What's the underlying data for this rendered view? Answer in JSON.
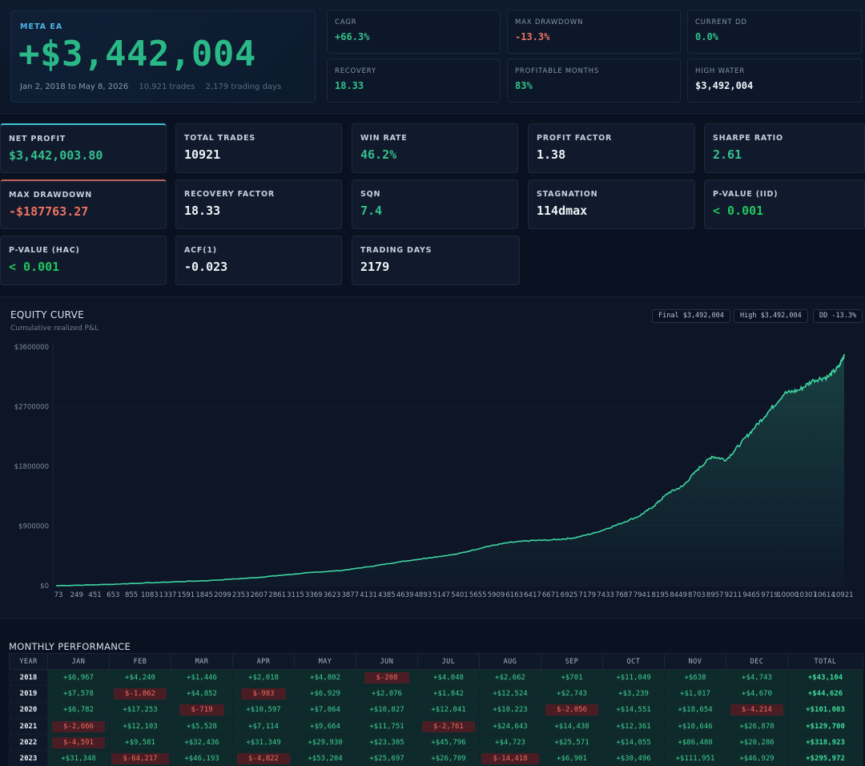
{
  "hero": {
    "tag": "META EA",
    "value": "+$3,442,004",
    "date_range": "Jan 2, 2018 to May 8, 2026",
    "trades": "10,921 trades",
    "days": "2,179 trading days"
  },
  "top_tiles": [
    {
      "label": "CAGR",
      "value": "+66.3%",
      "tone": "green"
    },
    {
      "label": "MAX DRAWDOWN",
      "value": "-13.3%",
      "tone": "red"
    },
    {
      "label": "CURRENT DD",
      "value": "0.0%",
      "tone": "green"
    },
    {
      "label": "RECOVERY",
      "value": "18.33",
      "tone": "green"
    },
    {
      "label": "PROFITABLE MONTHS",
      "value": "83%",
      "tone": "green"
    },
    {
      "label": "HIGH WATER",
      "value": "$3,492,004",
      "tone": "white"
    }
  ],
  "stats": [
    {
      "label": "NET PROFIT",
      "value": "$3,442,003.80",
      "tone": "green"
    },
    {
      "label": "TOTAL TRADES",
      "value": "10921",
      "tone": "white"
    },
    {
      "label": "WIN RATE",
      "value": "46.2%",
      "tone": "green"
    },
    {
      "label": "PROFIT FACTOR",
      "value": "1.38",
      "tone": "white"
    },
    {
      "label": "SHARPE RATIO",
      "value": "2.61",
      "tone": "green"
    },
    {
      "label": "MAX DRAWDOWN",
      "value": "-$187763.27",
      "tone": "red"
    },
    {
      "label": "RECOVERY FACTOR",
      "value": "18.33",
      "tone": "white"
    },
    {
      "label": "SQN",
      "value": "7.4",
      "tone": "green"
    },
    {
      "label": "STAGNATION",
      "value": "114dmax",
      "tone": "white"
    },
    {
      "label": "P-VALUE (IID)",
      "value": "< 0.001",
      "tone": "bright-green"
    },
    {
      "label": "P-VALUE (HAC)",
      "value": "< 0.001",
      "tone": "bright-green"
    },
    {
      "label": "ACF(1)",
      "value": "-0.023",
      "tone": "white"
    },
    {
      "label": "TRADING DAYS",
      "value": "2179",
      "tone": "white"
    }
  ],
  "equity": {
    "title": "EQUITY CURVE",
    "subtitle": "Cumulative realized P&L",
    "pills": [
      "Final $3,492,004",
      "High $3,492,004",
      "DD -13.3%"
    ],
    "line_color": "#3fd6a0"
  },
  "chart_data": {
    "type": "line",
    "title": "EQUITY CURVE",
    "subtitle": "Cumulative realized P&L",
    "xlabel": "",
    "ylabel": "",
    "ylim": [
      0,
      3600000
    ],
    "xlim": [
      73,
      10921
    ],
    "y_ticks": [
      "$0",
      "$900000",
      "$1800000",
      "$2700000",
      "$3600000"
    ],
    "x_ticks": [
      "73",
      "249",
      "451",
      "653",
      "855",
      "1083",
      "1337",
      "1591",
      "1845",
      "2099",
      "2353",
      "2607",
      "2861",
      "3115",
      "3369",
      "3623",
      "3877",
      "4131",
      "4385",
      "4639",
      "4893",
      "5147",
      "5401",
      "5655",
      "5909",
      "6163",
      "6417",
      "6671",
      "6925",
      "7179",
      "7433",
      "7687",
      "7941",
      "8195",
      "8449",
      "8703",
      "8957",
      "9211",
      "9465",
      "9719",
      "10000",
      "10307",
      "10614",
      "10921"
    ],
    "series": [
      {
        "x": [
          73,
          800,
          1500,
          2200,
          2800,
          3200,
          3600,
          4000,
          4400,
          4800,
          5200,
          5600,
          6000,
          6300,
          6600,
          6900,
          7200,
          7500,
          7800,
          8100,
          8300,
          8500,
          8700,
          8900,
          9100,
          9300,
          9500,
          9700,
          9900,
          10100,
          10300,
          10500,
          10700,
          10850,
          10921
        ],
        "y": [
          0,
          20000,
          50000,
          80000,
          120000,
          160000,
          200000,
          230000,
          290000,
          360000,
          420000,
          480000,
          590000,
          650000,
          680000,
          690000,
          720000,
          800000,
          920000,
          1050000,
          1200000,
          1400000,
          1500000,
          1750000,
          1950000,
          1900000,
          2150000,
          2400000,
          2650000,
          2900000,
          2950000,
          3100000,
          3150000,
          3300000,
          3492000
        ]
      }
    ],
    "grid": false
  },
  "monthly": {
    "title": "MONTHLY PERFORMANCE",
    "headers": [
      "YEAR",
      "JAN",
      "FEB",
      "MAR",
      "APR",
      "MAY",
      "JUN",
      "JUL",
      "AUG",
      "SEP",
      "OCT",
      "NOV",
      "DEC",
      "TOTAL"
    ],
    "rows": [
      [
        "2018",
        "+$6,967",
        "+$4,240",
        "+$1,446",
        "+$2,018",
        "+$4,802",
        "$-208",
        "+$4,048",
        "+$2,662",
        "+$701",
        "+$11,049",
        "+$638",
        "+$4,743",
        "+$43,104"
      ],
      [
        "2019",
        "+$7,578",
        "$-1,862",
        "+$4,852",
        "$-983",
        "+$6,929",
        "+$2,076",
        "+$1,842",
        "+$12,524",
        "+$2,743",
        "+$3,239",
        "+$1,017",
        "+$4,670",
        "+$44,626"
      ],
      [
        "2020",
        "+$6,782",
        "+$17,253",
        "$-719",
        "+$10,597",
        "+$7,064",
        "+$10,827",
        "+$12,041",
        "+$10,223",
        "$-2,056",
        "+$14,551",
        "+$18,654",
        "$-4,214",
        "+$101,003"
      ],
      [
        "2021",
        "$-2,666",
        "+$12,103",
        "+$5,528",
        "+$7,114",
        "+$9,664",
        "+$11,751",
        "$-2,761",
        "+$24,643",
        "+$14,438",
        "+$12,361",
        "+$10,646",
        "+$26,878",
        "+$129,700"
      ],
      [
        "2022",
        "$-4,591",
        "+$9,581",
        "+$32,436",
        "+$31,349",
        "+$29,930",
        "+$23,305",
        "+$45,796",
        "+$4,723",
        "+$25,571",
        "+$14,055",
        "+$86,480",
        "+$20,286",
        "+$318,923"
      ],
      [
        "2023",
        "+$31,348",
        "$-64,217",
        "+$46,193",
        "$-4,822",
        "+$53,204",
        "+$25,697",
        "+$26,709",
        "$-14,418",
        "+$6,901",
        "+$30,496",
        "+$111,951",
        "+$46,929",
        "+$295,972"
      ]
    ]
  }
}
